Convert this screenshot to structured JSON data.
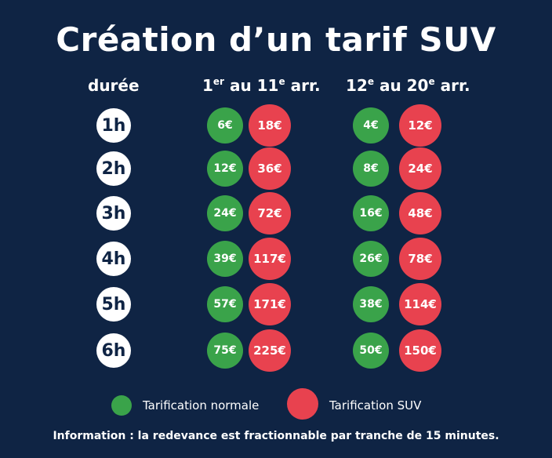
{
  "title": "Création d’un tarif SUV",
  "headers": {
    "duration": "durée",
    "zone1": {
      "from_num": "1",
      "from_sup": "er",
      "mid": " au 11",
      "to_sup": "e",
      "end": " arr."
    },
    "zone2": {
      "from_num": "12",
      "from_sup": "e",
      "mid": " au 20",
      "to_sup": "e",
      "end": " arr."
    }
  },
  "rows": [
    {
      "duration": "1h",
      "z1_normal": "6€",
      "z1_suv": "18€",
      "z2_normal": "4€",
      "z2_suv": "12€"
    },
    {
      "duration": "2h",
      "z1_normal": "12€",
      "z1_suv": "36€",
      "z2_normal": "8€",
      "z2_suv": "24€"
    },
    {
      "duration": "3h",
      "z1_normal": "24€",
      "z1_suv": "72€",
      "z2_normal": "16€",
      "z2_suv": "48€"
    },
    {
      "duration": "4h",
      "z1_normal": "39€",
      "z1_suv": "117€",
      "z2_normal": "26€",
      "z2_suv": "78€"
    },
    {
      "duration": "5h",
      "z1_normal": "57€",
      "z1_suv": "171€",
      "z2_normal": "38€",
      "z2_suv": "114€"
    },
    {
      "duration": "6h",
      "z1_normal": "75€",
      "z1_suv": "225€",
      "z2_normal": "50€",
      "z2_suv": "150€"
    }
  ],
  "legend": {
    "normal": "Tarification normale",
    "suv": "Tarification SUV"
  },
  "info": "Information : la redevance est fractionnable par tranche de 15 minutes.",
  "colors": {
    "background": "#0f2444",
    "normal": "#3aa34a",
    "suv": "#e8424f",
    "text": "#ffffff"
  }
}
